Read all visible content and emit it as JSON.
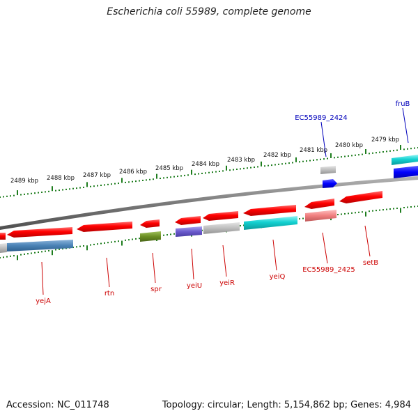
{
  "title": "Escherichia coli 55989, complete genome",
  "footer": {
    "accession": "Accession: NC_011748",
    "summary": "Topology: circular; Length: 5,154,862 bp; Genes: 4,984"
  },
  "colors": {
    "tick_green": "#1e7d1e",
    "backbone": "#7a7a7a",
    "label_red": "#cc0000",
    "label_blue": "#0000bb"
  },
  "kbp_ticks": [
    "2489 kbp",
    "2488 kbp",
    "2487 kbp",
    "2486 kbp",
    "2485 kbp",
    "2484 kbp",
    "2483 kbp",
    "2482 kbp",
    "2481 kbp",
    "2480 kbp",
    "2479 kbp"
  ],
  "gene_labels": [
    {
      "text": "yejA",
      "color": "red"
    },
    {
      "text": "rtn",
      "color": "red"
    },
    {
      "text": "spr",
      "color": "red"
    },
    {
      "text": "yeiU",
      "color": "red"
    },
    {
      "text": "yeiR",
      "color": "red"
    },
    {
      "text": "yeiQ",
      "color": "red"
    },
    {
      "text": "EC55989_2425",
      "color": "red"
    },
    {
      "text": "setB",
      "color": "red"
    },
    {
      "text": "EC55989_2424",
      "color": "blue"
    },
    {
      "text": "fruB",
      "color": "blue"
    }
  ]
}
